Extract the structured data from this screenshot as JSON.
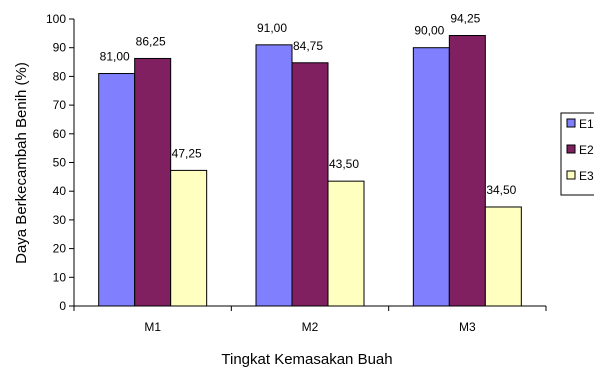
{
  "chart_data": {
    "type": "bar",
    "categories": [
      "M1",
      "M2",
      "M3"
    ],
    "series": [
      {
        "name": "E1",
        "values": [
          81.0,
          91.0,
          90.0
        ],
        "labels": [
          "81,00",
          "91,00",
          "90,00"
        ],
        "color": "#8080ff"
      },
      {
        "name": "E2",
        "values": [
          86.25,
          84.75,
          94.25
        ],
        "labels": [
          "86,25",
          "84,75",
          "94,25"
        ],
        "color": "#802060"
      },
      {
        "name": "E3",
        "values": [
          47.25,
          43.5,
          34.5
        ],
        "labels": [
          "47,25",
          "43,50",
          "34,50"
        ],
        "color": "#ffffc0"
      }
    ],
    "xlabel": "Tingkat Kemasakan Buah",
    "ylabel": "Daya Berkecambah Benih (%)",
    "ylim": [
      0,
      100
    ],
    "yticks": [
      0,
      10,
      20,
      30,
      40,
      50,
      60,
      70,
      80,
      90,
      100
    ],
    "grid": false,
    "legend": "right"
  }
}
